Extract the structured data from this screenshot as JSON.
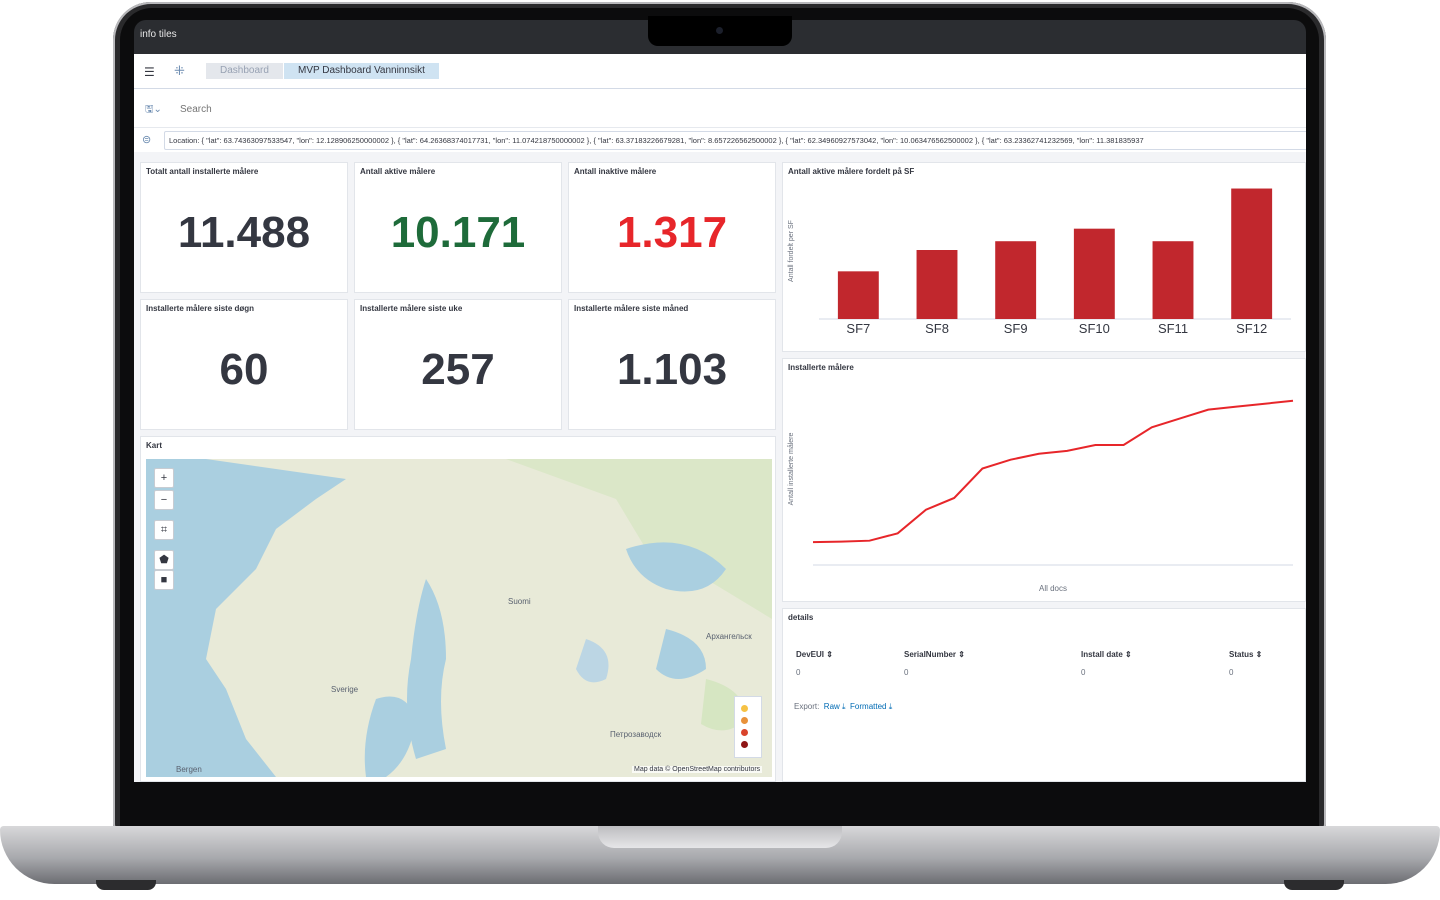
{
  "brand": {
    "logo": "info tiles"
  },
  "header": {
    "breadcrumbs": [
      "Dashboard",
      "MVP Dashboard Vanninnsikt"
    ]
  },
  "search": {
    "placeholder": "Search"
  },
  "filter": {
    "text": "Location: { \"lat\": 63.74363097533547, \"lon\": 12.128906250000002 }, { \"lat\": 64.26368374017731, \"lon\": 11.074218750000002 }, { \"lat\": 63.37183226679281, \"lon\": 8.657226562500002 }, { \"lat\": 62.34960927573042, \"lon\": 10.063476562500002 }, { \"lat\": 63.23362741232569, \"lon\": 11.381835937"
  },
  "metrics": [
    {
      "title": "Totalt antall installerte målere",
      "value": "11.488",
      "color": "#343741"
    },
    {
      "title": "Antall aktive målere",
      "value": "10.171",
      "color": "#1e6b3a"
    },
    {
      "title": "Antall inaktive målere",
      "value": "1.317",
      "color": "#e7262a"
    },
    {
      "title": "Installerte målere siste døgn",
      "value": "60",
      "color": "#343741"
    },
    {
      "title": "Installerte målere siste uke",
      "value": "257",
      "color": "#343741"
    },
    {
      "title": "Installerte målere siste måned",
      "value": "1.103",
      "color": "#343741"
    }
  ],
  "map": {
    "title": "Kart",
    "attribution": "Map data © OpenStreetMap contributors",
    "labels": [
      "Suomi",
      "Sverige",
      "Bergen",
      "Архангельск",
      "Петрозаводск"
    ],
    "legend_colors": [
      "#f6c244",
      "#e8913a",
      "#d9442c",
      "#8f1515"
    ]
  },
  "chart_data": [
    {
      "type": "bar",
      "title": "Antall aktive målere fordelt på SF",
      "ylabel": "Antall fordelt per SF",
      "categories": [
        "SF7",
        "SF8",
        "SF9",
        "SF10",
        "SF11",
        "SF12"
      ],
      "values": [
        38,
        55,
        62,
        72,
        62,
        104
      ],
      "ylim": [
        0,
        110
      ],
      "color": "#c1272d"
    },
    {
      "type": "line",
      "title": "Installerte målere",
      "ylabel": "Antall installerte målere",
      "xlabel": "All docs",
      "x": [
        0,
        1,
        2,
        3,
        4,
        5,
        6,
        7,
        8,
        9,
        10,
        11,
        12,
        13,
        14,
        15,
        16,
        17
      ],
      "values": [
        3,
        3.2,
        3.5,
        6,
        14,
        18,
        28,
        31,
        33,
        34,
        36,
        36,
        42,
        45,
        48,
        49,
        50,
        51
      ],
      "color": "#e7262a"
    }
  ],
  "details": {
    "title": "details",
    "columns": [
      "DevEUI",
      "SerialNumber",
      "Install date",
      "Status"
    ],
    "row": [
      "0",
      "0",
      "0",
      "0"
    ],
    "export_label": "Export:",
    "raw_label": "Raw",
    "formatted_label": "Formatted"
  }
}
